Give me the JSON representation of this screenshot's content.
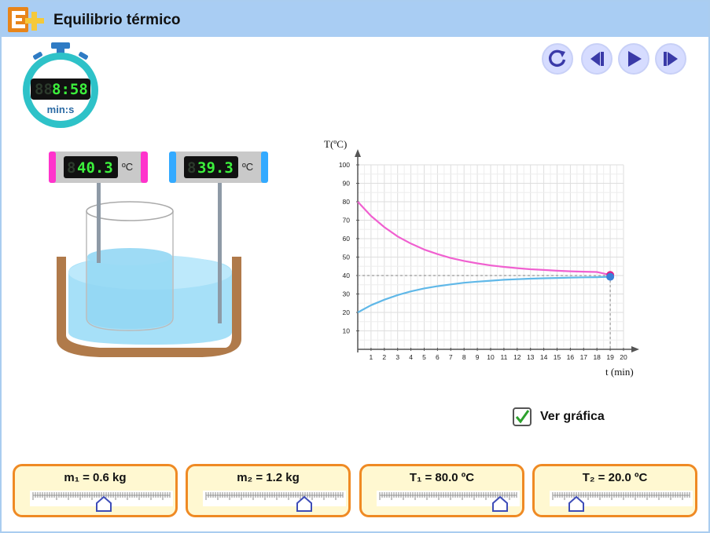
{
  "app": {
    "title": "Equilibrio térmico"
  },
  "controls": [
    {
      "name": "reset-button",
      "icon": "reset-icon"
    },
    {
      "name": "step-back-button",
      "icon": "step-back-icon"
    },
    {
      "name": "play-button",
      "icon": "play-icon"
    },
    {
      "name": "step-forward-button",
      "icon": "step-forward-icon"
    }
  ],
  "stopwatch": {
    "display_dim": "88",
    "display": "8:58",
    "unit": "min:s"
  },
  "thermometers": [
    {
      "display_dim": "8",
      "display": "40.3",
      "unit": "ºC",
      "color": "#ff33cc"
    },
    {
      "display_dim": "8",
      "display": "39.3",
      "unit": "ºC",
      "color": "#33aaff"
    }
  ],
  "chart_data": {
    "type": "line",
    "ylabel": "T(ºC)",
    "xlabel": "t (min)",
    "xlim": [
      0,
      20
    ],
    "ylim": [
      0,
      100
    ],
    "x_ticks": [
      "1",
      "2",
      "3",
      "4",
      "5",
      "6",
      "7",
      "8",
      "9",
      "10",
      "11",
      "12",
      "13",
      "14",
      "15",
      "16",
      "17",
      "18",
      "19",
      "20"
    ],
    "y_ticks": [
      "10",
      "20",
      "30",
      "40",
      "50",
      "60",
      "70",
      "80",
      "90",
      "100"
    ],
    "grid": true,
    "equilibrium_temperature": 40,
    "equilibrium_time": 19,
    "series": [
      {
        "color": "#f060d0",
        "x": [
          0,
          1,
          2,
          3,
          4,
          5,
          6,
          7,
          8,
          9,
          10,
          11,
          12,
          13,
          14,
          15,
          16,
          17,
          18,
          19
        ],
        "y": [
          80,
          72.3,
          66.2,
          61.2,
          57.3,
          54.1,
          51.6,
          49.5,
          47.9,
          46.6,
          45.5,
          44.7,
          44.0,
          43.4,
          43.0,
          42.6,
          42.3,
          42.1,
          41.9,
          40.3
        ]
      },
      {
        "color": "#60b8e8",
        "x": [
          0,
          1,
          2,
          3,
          4,
          5,
          6,
          7,
          8,
          9,
          10,
          11,
          12,
          13,
          14,
          15,
          16,
          17,
          18,
          19
        ],
        "y": [
          20,
          23.9,
          26.9,
          29.4,
          31.4,
          33.0,
          34.2,
          35.2,
          36.1,
          36.7,
          37.2,
          37.7,
          38.0,
          38.3,
          38.5,
          38.7,
          38.9,
          39.0,
          39.1,
          39.3
        ]
      }
    ]
  },
  "show_graph": {
    "label": "Ver gráfica",
    "checked": true
  },
  "parameters": [
    {
      "label": "m₁ = 0.6 kg",
      "fraction": 0.52
    },
    {
      "label": "m₂ = 1.2 kg",
      "fraction": 0.72
    },
    {
      "label": "T₁ = 80.0 ºC",
      "fraction": 0.88
    },
    {
      "label": "T₂ = 20.0 ºC",
      "fraction": 0.17
    }
  ]
}
